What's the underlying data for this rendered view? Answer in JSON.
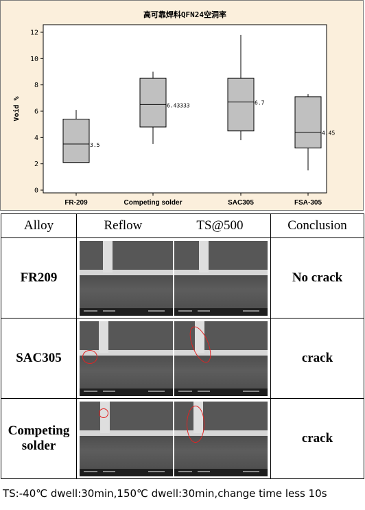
{
  "chart_data": {
    "type": "box",
    "title": "高可靠焊料QFN24空洞率",
    "ylabel": "Void %",
    "xlabel": "",
    "ylim": [
      0,
      12
    ],
    "yticks": [
      0,
      2,
      4,
      6,
      8,
      10,
      12
    ],
    "categories": [
      "FR-209",
      "Competing solder",
      "SAC305",
      "FSA-305"
    ],
    "boxes": [
      {
        "category": "FR-209",
        "min": 2.1,
        "q1": 2.1,
        "median": 3.5,
        "q3": 5.4,
        "max": 6.1,
        "label": "3.5",
        "label_value": 3.5
      },
      {
        "category": "Competing solder",
        "min": 3.5,
        "q1": 4.8,
        "median": 6.5,
        "q3": 8.5,
        "max": 9.0,
        "label": "6.43333",
        "label_value": 6.43333
      },
      {
        "category": "SAC305",
        "min": 3.8,
        "q1": 4.5,
        "median": 6.7,
        "q3": 8.5,
        "max": 11.8,
        "label": "6.7",
        "label_value": 6.7
      },
      {
        "category": "FSA-305",
        "min": 1.5,
        "q1": 3.2,
        "median": 4.4,
        "q3": 7.1,
        "max": 7.3,
        "label": "4.45",
        "label_value": 4.45
      }
    ],
    "box_color": "#c0c0c0",
    "grid": false
  },
  "table": {
    "headers": {
      "alloy": "Alloy",
      "reflow": "Reflow",
      "ts": "TS@500",
      "conclusion": "Conclusion"
    },
    "rows": [
      {
        "alloy_lines": [
          "FR209"
        ],
        "conclusion": "No crack"
      },
      {
        "alloy_lines": [
          "SAC305"
        ],
        "conclusion": "crack"
      },
      {
        "alloy_lines": [
          "Competing",
          "solder"
        ],
        "conclusion": "crack"
      }
    ]
  },
  "footer_note": "TS:-40℃ dwell:30min,150℃ dwell:30min,change time less 10s"
}
